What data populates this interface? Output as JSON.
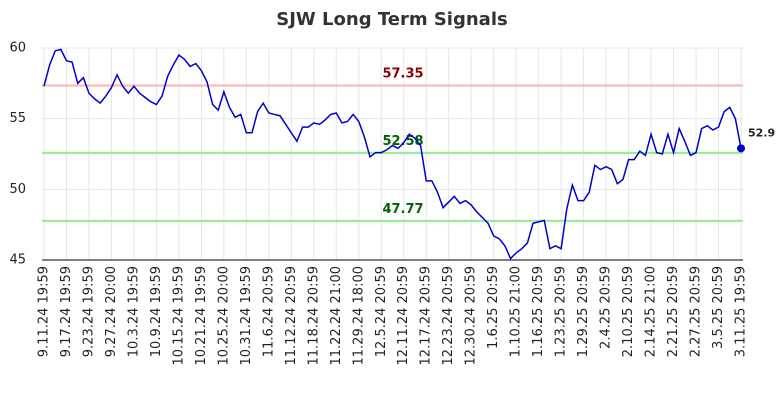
{
  "chart_data": {
    "type": "line",
    "title": "SJW Long Term Signals",
    "categories": [
      "9.11.24 19:59",
      null,
      null,
      null,
      "9.17.24 19:59",
      null,
      null,
      null,
      "9.23.24 19:59",
      null,
      null,
      null,
      "9.27.24 20:00",
      null,
      null,
      null,
      "10.3.24 19:59",
      null,
      null,
      null,
      "10.9.24 19:59",
      null,
      null,
      null,
      "10.15.24 19:59",
      null,
      null,
      null,
      "10.21.24 19:59",
      null,
      null,
      null,
      "10.25.24 20:00",
      null,
      null,
      null,
      "10.31.24 19:59",
      null,
      null,
      null,
      "11.6.24 20:59",
      null,
      null,
      null,
      "11.12.24 20:59",
      null,
      null,
      null,
      "11.18.24 20:59",
      null,
      null,
      null,
      "11.22.24 21:00",
      null,
      null,
      null,
      "11.29.24 18:00",
      null,
      null,
      null,
      "12.5.24 20:59",
      null,
      null,
      null,
      "12.11.24 20:59",
      null,
      null,
      null,
      "12.17.24 20:59",
      null,
      null,
      null,
      "12.23.24 20:59",
      null,
      null,
      null,
      "12.30.24 20:59",
      null,
      null,
      null,
      "1.6.25 20:59",
      null,
      null,
      null,
      "1.10.25 21:00",
      null,
      null,
      null,
      "1.16.25 20:59",
      null,
      null,
      null,
      "1.23.25 20:59",
      null,
      null,
      null,
      "1.29.25 20:59",
      null,
      null,
      null,
      "2.4.25 20:59",
      null,
      null,
      null,
      "2.10.25 20:59",
      null,
      null,
      null,
      "2.14.25 21:00",
      null,
      null,
      null,
      "2.21.25 20:59",
      null,
      null,
      null,
      "2.27.25 20:59",
      null,
      null,
      null,
      "3.5.25 20:59",
      null,
      null,
      null,
      "3.11.25 19:59"
    ],
    "series": [
      {
        "name": "SJW",
        "color": "#0000cc",
        "values": [
          57.3,
          58.8,
          59.8,
          59.9,
          59.1,
          59.0,
          57.5,
          57.9,
          56.8,
          56.4,
          56.1,
          56.6,
          57.2,
          58.1,
          57.3,
          56.8,
          57.3,
          56.8,
          56.5,
          56.2,
          56.0,
          56.6,
          58.0,
          58.8,
          59.5,
          59.2,
          58.7,
          58.9,
          58.4,
          57.6,
          56.0,
          55.6,
          56.9,
          55.8,
          55.1,
          55.3,
          54.0,
          54.0,
          55.5,
          56.1,
          55.4,
          55.3,
          55.2,
          54.6,
          54.0,
          53.4,
          54.4,
          54.4,
          54.7,
          54.6,
          54.9,
          55.3,
          55.4,
          54.7,
          54.8,
          55.3,
          54.8,
          53.7,
          52.3,
          52.6,
          52.6,
          52.8,
          53.1,
          52.9,
          53.3,
          53.9,
          53.6,
          53.1,
          50.6,
          50.6,
          49.8,
          48.7,
          49.1,
          49.5,
          49.0,
          49.2,
          48.9,
          48.4,
          48.0,
          47.6,
          46.7,
          46.5,
          46.0,
          45.1,
          45.5,
          45.8,
          46.2,
          47.6,
          47.7,
          47.8,
          45.8,
          46.0,
          45.8,
          48.6,
          50.3,
          49.2,
          49.2,
          49.8,
          51.7,
          51.4,
          51.6,
          51.4,
          50.4,
          50.7,
          52.1,
          52.1,
          52.7,
          52.4,
          53.9,
          52.6,
          52.5,
          53.9,
          52.6,
          54.3,
          53.4,
          52.4,
          52.6,
          54.3,
          54.5,
          54.2,
          54.4,
          55.5,
          55.8,
          55.0,
          52.9
        ]
      }
    ],
    "reference_lines": [
      {
        "value": 57.35,
        "color": "#ffb3b3",
        "label_color": "#8b0000"
      },
      {
        "value": 52.58,
        "color": "#90ee90",
        "label_color": "#006400"
      },
      {
        "value": 47.77,
        "color": "#90ee90",
        "label_color": "#006400"
      }
    ],
    "ylim": [
      45,
      60
    ],
    "yticks": [
      45,
      50,
      55,
      60
    ],
    "grid": true
  }
}
